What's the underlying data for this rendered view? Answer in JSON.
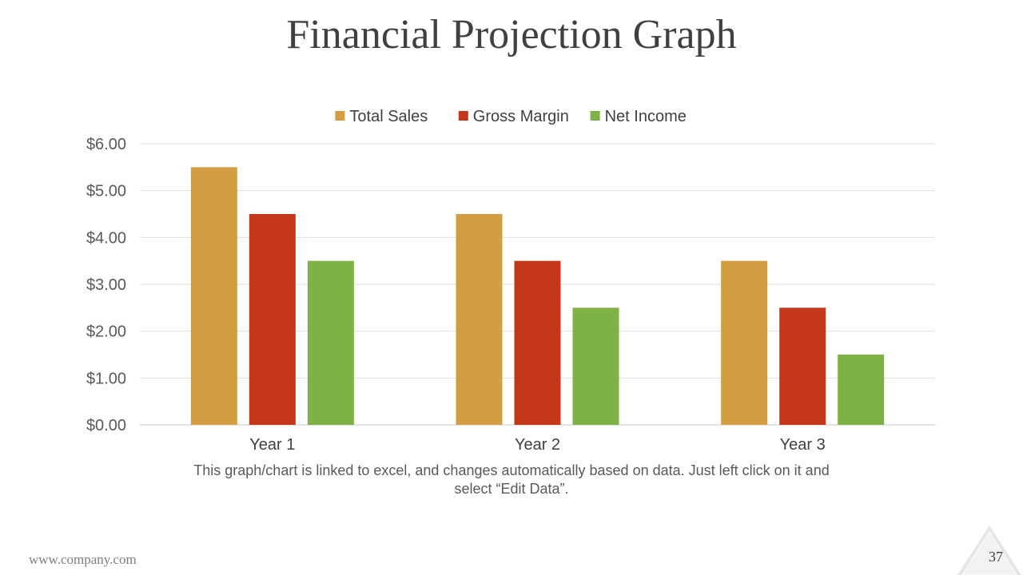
{
  "slide": {
    "title": "Financial Projection Graph",
    "caption": "This graph/chart is linked to excel, and changes automatically based on data. Just left click on it and select “Edit Data”.",
    "footer_url": "www.company.com",
    "page_number": "37"
  },
  "chart_data": {
    "type": "bar",
    "categories": [
      "Year 1",
      "Year 2",
      "Year 3"
    ],
    "series": [
      {
        "name": "Total Sales",
        "values": [
          5.5,
          4.5,
          3.5
        ],
        "color": "#D39E41"
      },
      {
        "name": "Gross Margin",
        "values": [
          4.5,
          3.5,
          2.5
        ],
        "color": "#C43718"
      },
      {
        "name": "Net Income",
        "values": [
          3.5,
          2.5,
          1.5
        ],
        "color": "#7FB245"
      }
    ],
    "ylim": [
      0,
      6
    ],
    "yticks": [
      "$0.00",
      "$1.00",
      "$2.00",
      "$3.00",
      "$4.00",
      "$5.00",
      "$6.00"
    ],
    "grid": true,
    "legend_position": "top"
  }
}
